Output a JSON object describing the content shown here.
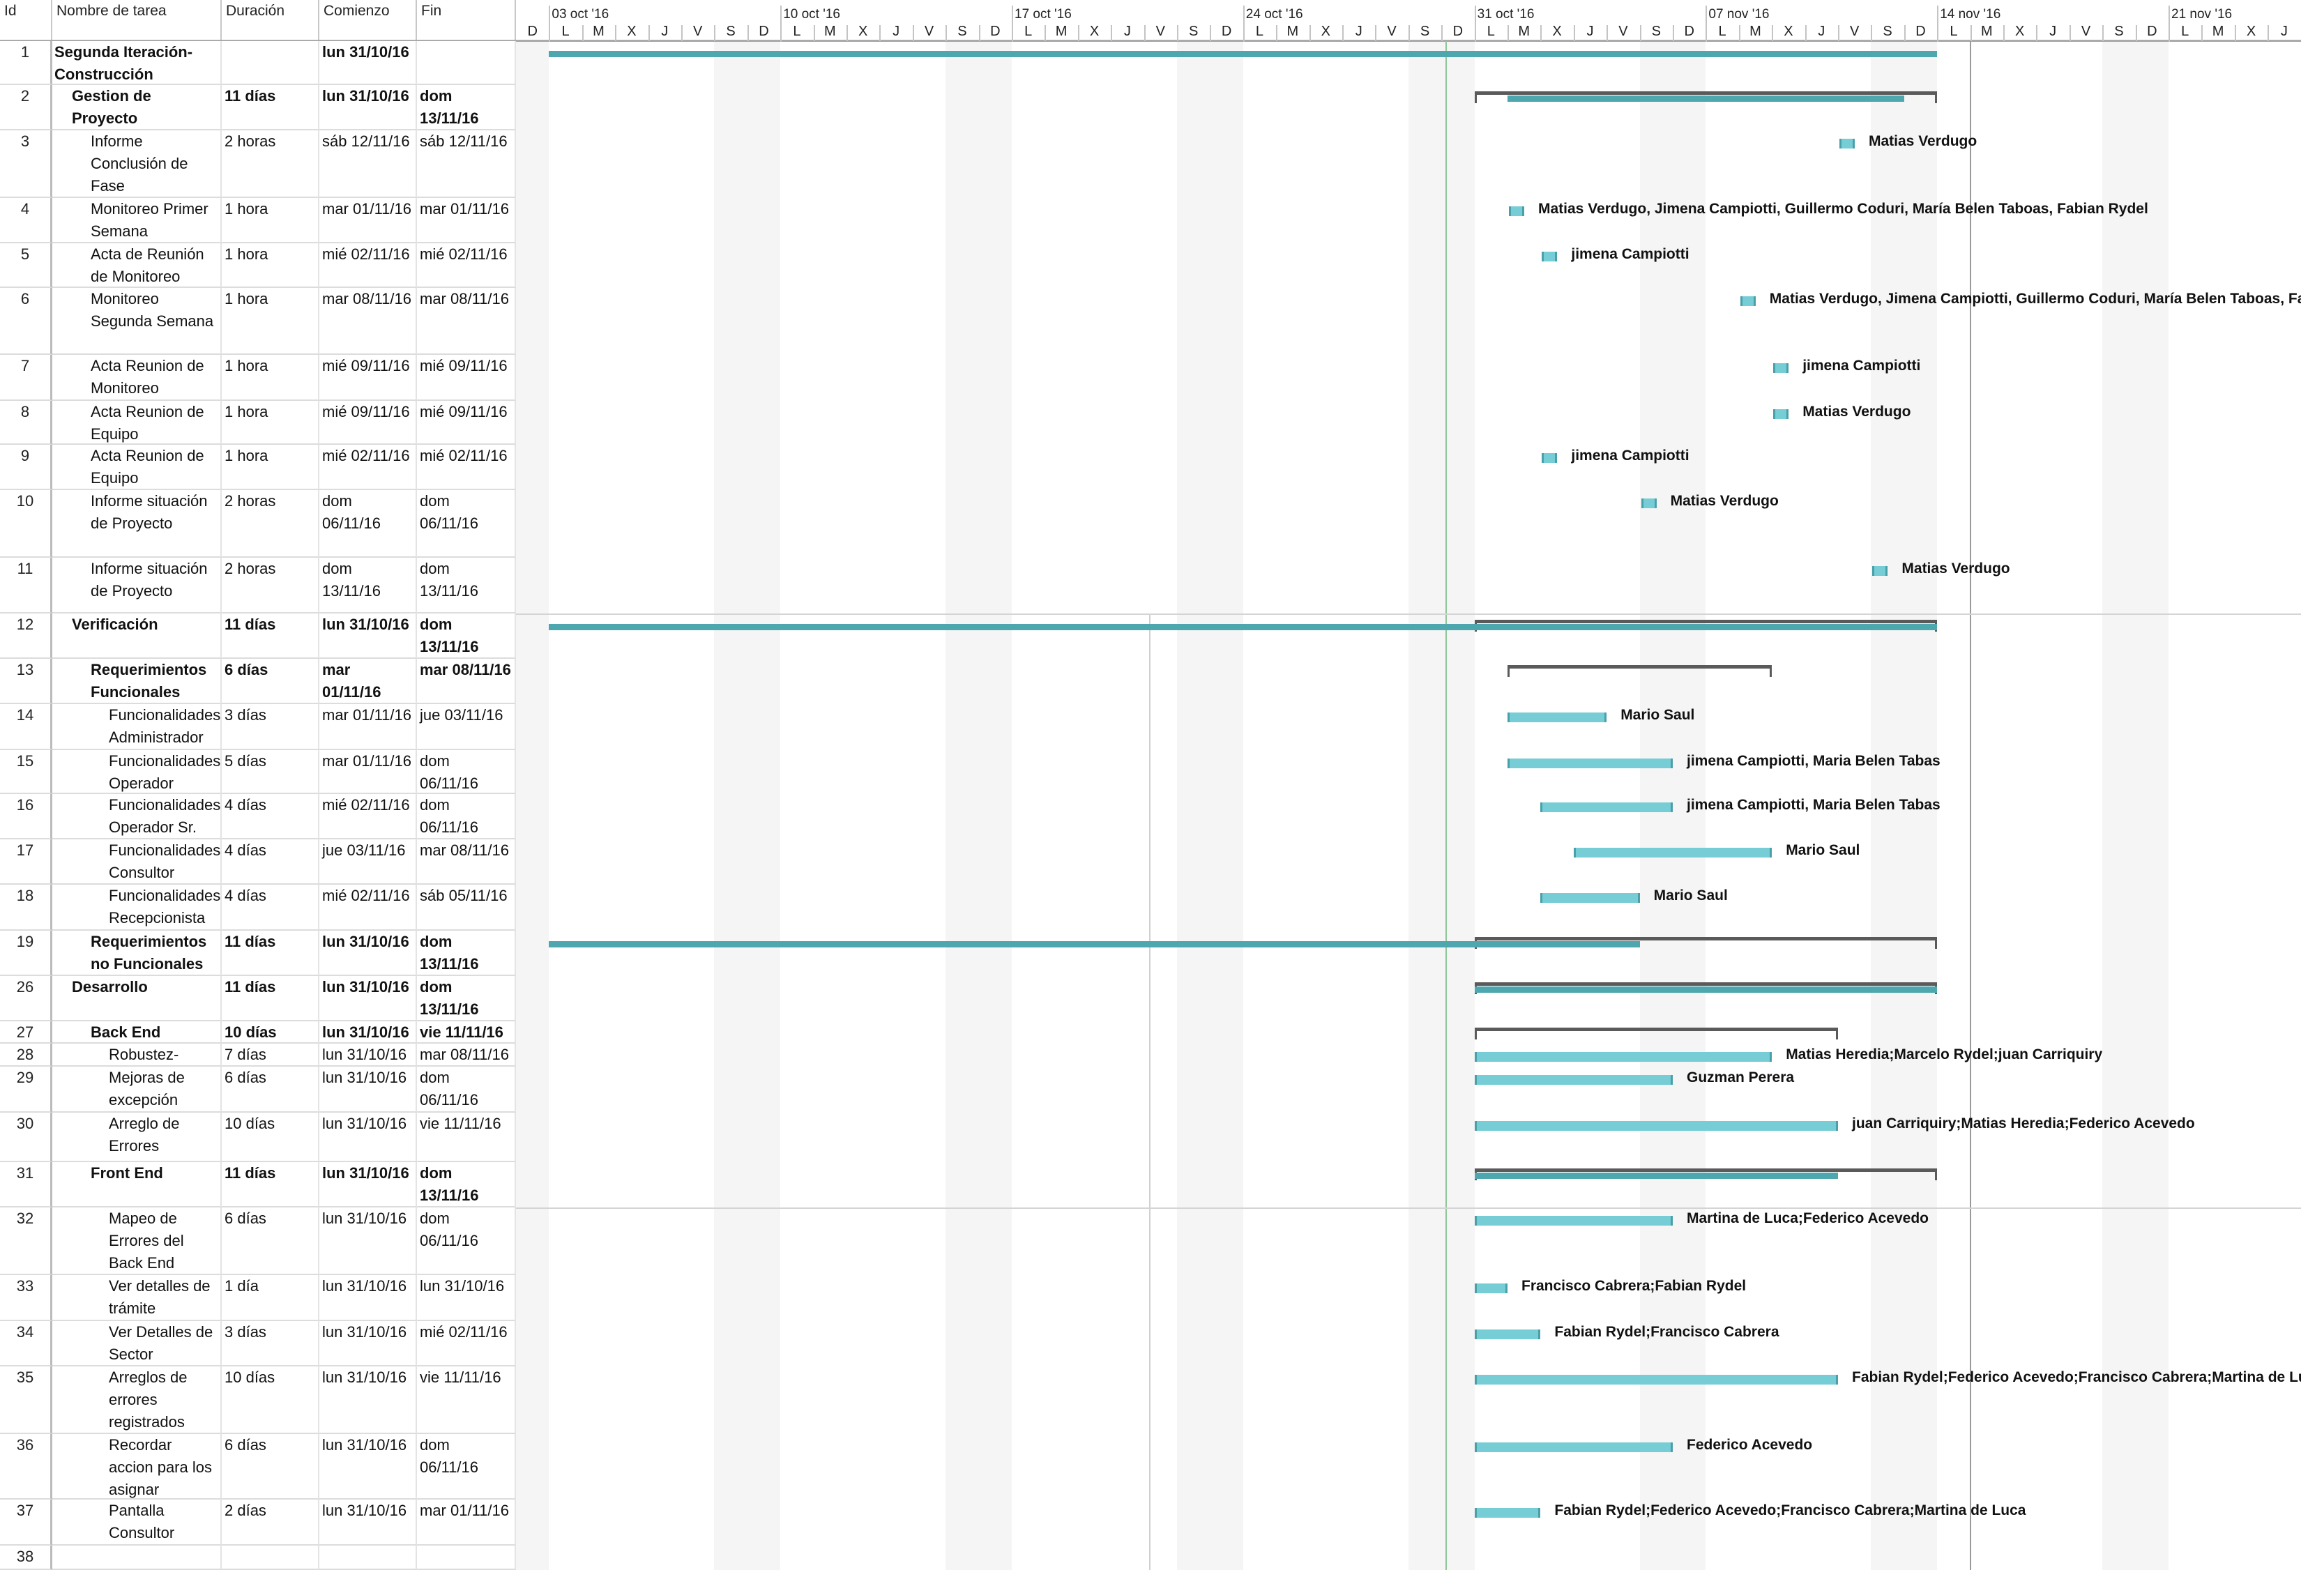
{
  "columns": {
    "id": "Id",
    "name": "Nombre de tarea",
    "duration": "Duración",
    "start": "Comienzo",
    "finish": "Fin"
  },
  "timescale": {
    "weeks": [
      "03 oct '16",
      "10 oct '16",
      "17 oct '16",
      "24 oct '16",
      "31 oct '16",
      "07 nov '16",
      "14 nov '16",
      "21 nov '16"
    ],
    "day_letters": [
      "D",
      "L",
      "M",
      "X",
      "J",
      "V",
      "S"
    ]
  },
  "colors": {
    "task_bar": "#76cdd5",
    "summary_bar": "#4ea6ae",
    "bracket": "#5a5a5a",
    "weekend": "#f5f5f5",
    "status_line": "#8fc79a"
  },
  "rows": [
    {
      "id": "1",
      "name": "Segunda Iteración-Construcción",
      "duration": "",
      "start": "lun 31/10/16",
      "finish": "",
      "level": 0,
      "bold": true,
      "bars": [
        {
          "type": "teal",
          "from": "03/10/16",
          "to": "13/11/16"
        }
      ]
    },
    {
      "id": "2",
      "name": "Gestion de Proyecto",
      "duration": "11 días",
      "start": "lun 31/10/16",
      "finish": "dom 13/11/16",
      "level": 1,
      "bold": true,
      "bars": [
        {
          "type": "bracket",
          "from": "31/10/16",
          "to": "13/11/16"
        },
        {
          "type": "teal",
          "from": "01/11/16",
          "to": "12/11/16"
        }
      ]
    },
    {
      "id": "3",
      "name": "Informe Conclusión de Fase",
      "duration": "2 horas",
      "start": "sáb 12/11/16",
      "finish": "sáb 12/11/16",
      "level": 2,
      "bars": [
        {
          "type": "hour",
          "from": "11/11/16"
        }
      ],
      "resources": "Matias Verdugo"
    },
    {
      "id": "4",
      "name": "Monitoreo Primer Semana",
      "duration": "1 hora",
      "start": "mar 01/11/16",
      "finish": "mar 01/11/16",
      "level": 2,
      "bars": [
        {
          "type": "hour",
          "from": "01/11/16"
        }
      ],
      "resources": "Matias Verdugo, Jimena Campiotti, Guillermo Coduri, María Belen Taboas, Fabian Rydel"
    },
    {
      "id": "5",
      "name": "Acta de Reunión de Monitoreo",
      "duration": "1 hora",
      "start": "mié 02/11/16",
      "finish": "mié 02/11/16",
      "level": 2,
      "bars": [
        {
          "type": "hour",
          "from": "02/11/16"
        }
      ],
      "resources": "jimena Campiotti"
    },
    {
      "id": "6",
      "name": "Monitoreo Segunda Semana",
      "duration": "1 hora",
      "start": "mar 08/11/16",
      "finish": "mar 08/11/16",
      "level": 2,
      "bars": [
        {
          "type": "hour",
          "from": "08/11/16"
        }
      ],
      "resources": "Matias Verdugo, Jimena Campiotti, Guillermo Coduri, María Belen Taboas, Fabian Rydel"
    },
    {
      "id": "7",
      "name": "Acta Reunion de Monitoreo",
      "duration": "1 hora",
      "start": "mié 09/11/16",
      "finish": "mié 09/11/16",
      "level": 2,
      "bars": [
        {
          "type": "hour",
          "from": "09/11/16"
        }
      ],
      "resources": "jimena Campiotti"
    },
    {
      "id": "8",
      "name": "Acta Reunion de Equipo",
      "duration": "1 hora",
      "start": "mié 09/11/16",
      "finish": "mié 09/11/16",
      "level": 2,
      "bars": [
        {
          "type": "hour",
          "from": "09/11/16"
        }
      ],
      "resources": "Matias Verdugo"
    },
    {
      "id": "9",
      "name": "Acta Reunion de Equipo",
      "duration": "1 hora",
      "start": "mié 02/11/16",
      "finish": "mié 02/11/16",
      "level": 2,
      "bars": [
        {
          "type": "hour",
          "from": "02/11/16"
        }
      ],
      "resources": "jimena Campiotti"
    },
    {
      "id": "10",
      "name": "Informe situación de Proyecto",
      "duration": "2 horas",
      "start": "dom 06/11/16",
      "finish": "dom 06/11/16",
      "level": 2,
      "bars": [
        {
          "type": "hour",
          "from": "05/11/16"
        }
      ],
      "resources": "Matias Verdugo"
    },
    {
      "id": "11",
      "name": "Informe situación de Proyecto",
      "duration": "2 horas",
      "start": "dom 13/11/16",
      "finish": "dom 13/11/16",
      "level": 2,
      "bars": [
        {
          "type": "hour",
          "from": "12/11/16"
        }
      ],
      "resources": "Matias Verdugo"
    },
    {
      "id": "12",
      "name": "Verificación",
      "duration": "11 días",
      "start": "lun 31/10/16",
      "finish": "dom 13/11/16",
      "level": 1,
      "bold": true,
      "bars": [
        {
          "type": "bracket",
          "from": "31/10/16",
          "to": "13/11/16"
        },
        {
          "type": "teal",
          "from": "03/10/16",
          "to": "13/11/16"
        }
      ]
    },
    {
      "id": "13",
      "name": "Requerimientos Funcionales",
      "duration": "6 días",
      "start": "mar 01/11/16",
      "finish": "mar 08/11/16",
      "level": 2,
      "bold": true,
      "bars": [
        {
          "type": "bracket",
          "from": "01/11/16",
          "to": "08/11/16"
        }
      ]
    },
    {
      "id": "14",
      "name": "Funcionalidades Administrador",
      "duration": "3 días",
      "start": "mar 01/11/16",
      "finish": "jue 03/11/16",
      "level": 3,
      "bars": [
        {
          "type": "task",
          "from": "01/11/16",
          "to": "03/11/16"
        }
      ],
      "resources": "Mario Saul"
    },
    {
      "id": "15",
      "name": "Funcionalidades Operador",
      "duration": "5 días",
      "start": "mar 01/11/16",
      "finish": "dom 06/11/16",
      "level": 3,
      "bars": [
        {
          "type": "task",
          "from": "01/11/16",
          "to": "05/11/16"
        }
      ],
      "resources": "jimena Campiotti, Maria Belen Tabas"
    },
    {
      "id": "16",
      "name": "Funcionalidades Operador Sr.",
      "duration": "4 días",
      "start": "mié 02/11/16",
      "finish": "dom 06/11/16",
      "level": 3,
      "bars": [
        {
          "type": "task",
          "from": "02/11/16",
          "to": "05/11/16"
        }
      ],
      "resources": "jimena Campiotti, Maria Belen Tabas"
    },
    {
      "id": "17",
      "name": "Funcionalidades Consultor",
      "duration": "4 días",
      "start": "jue 03/11/16",
      "finish": "mar 08/11/16",
      "level": 3,
      "bars": [
        {
          "type": "task",
          "from": "03/11/16",
          "to": "08/11/16"
        }
      ],
      "resources": "Mario Saul"
    },
    {
      "id": "18",
      "name": "Funcionalidades Recepcionista",
      "duration": "4 días",
      "start": "mié 02/11/16",
      "finish": "sáb 05/11/16",
      "level": 3,
      "bars": [
        {
          "type": "task",
          "from": "02/11/16",
          "to": "04/11/16"
        }
      ],
      "resources": "Mario Saul"
    },
    {
      "id": "19",
      "name": "Requerimientos no Funcionales",
      "duration": "11 días",
      "start": "lun 31/10/16",
      "finish": "dom 13/11/16",
      "level": 2,
      "bold": true,
      "bars": [
        {
          "type": "bracket",
          "from": "31/10/16",
          "to": "13/11/16"
        },
        {
          "type": "teal",
          "from": "03/10/16",
          "to": "04/11/16"
        }
      ]
    },
    {
      "id": "26",
      "name": "Desarrollo",
      "duration": "11 días",
      "start": "lun 31/10/16",
      "finish": "dom 13/11/16",
      "level": 1,
      "bold": true,
      "bars": [
        {
          "type": "bracket",
          "from": "31/10/16",
          "to": "13/11/16"
        },
        {
          "type": "teal",
          "from": "31/10/16",
          "to": "13/11/16"
        }
      ]
    },
    {
      "id": "27",
      "name": "Back End",
      "duration": "10 días",
      "start": "lun 31/10/16",
      "finish": "vie 11/11/16",
      "level": 2,
      "bold": true,
      "bars": [
        {
          "type": "bracket",
          "from": "31/10/16",
          "to": "10/11/16"
        }
      ]
    },
    {
      "id": "28",
      "name": "Robustez-Scalabilidad",
      "duration": "7 días",
      "start": "lun 31/10/16",
      "finish": "mar 08/11/16",
      "level": 3,
      "bars": [
        {
          "type": "task",
          "from": "31/10/16",
          "to": "08/11/16"
        }
      ],
      "resources": "Matias Heredia;Marcelo Rydel;juan Carriquiry"
    },
    {
      "id": "29",
      "name": "Mejoras de excepción",
      "duration": "6 días",
      "start": "lun 31/10/16",
      "finish": "dom 06/11/16",
      "level": 3,
      "bars": [
        {
          "type": "task",
          "from": "31/10/16",
          "to": "05/11/16"
        }
      ],
      "resources": "Guzman Perera"
    },
    {
      "id": "30",
      "name": "Arreglo de Errores",
      "duration": "10 días",
      "start": "lun 31/10/16",
      "finish": "vie 11/11/16",
      "level": 3,
      "bars": [
        {
          "type": "task",
          "from": "31/10/16",
          "to": "10/11/16"
        }
      ],
      "resources": "juan Carriquiry;Matias Heredia;Federico Acevedo"
    },
    {
      "id": "31",
      "name": "Front End",
      "duration": "11 días",
      "start": "lun 31/10/16",
      "finish": "dom 13/11/16",
      "level": 2,
      "bold": true,
      "bars": [
        {
          "type": "bracket",
          "from": "31/10/16",
          "to": "13/11/16"
        },
        {
          "type": "teal",
          "from": "31/10/16",
          "to": "10/11/16"
        }
      ]
    },
    {
      "id": "32",
      "name": "Mapeo de Errores del Back End",
      "duration": "6 días",
      "start": "lun 31/10/16",
      "finish": "dom 06/11/16",
      "level": 3,
      "bars": [
        {
          "type": "task",
          "from": "31/10/16",
          "to": "05/11/16"
        }
      ],
      "resources": "Martina de Luca;Federico Acevedo"
    },
    {
      "id": "33",
      "name": "Ver detalles de trámite",
      "duration": "1 día",
      "start": "lun 31/10/16",
      "finish": "lun 31/10/16",
      "level": 3,
      "bars": [
        {
          "type": "task",
          "from": "31/10/16",
          "to": "31/10/16"
        }
      ],
      "resources": "Francisco Cabrera;Fabian Rydel"
    },
    {
      "id": "34",
      "name": "Ver Detalles de Sector",
      "duration": "3 días",
      "start": "lun 31/10/16",
      "finish": "mié 02/11/16",
      "level": 3,
      "bars": [
        {
          "type": "task",
          "from": "31/10/16",
          "to": "01/11/16"
        }
      ],
      "resources": "Fabian Rydel;Francisco Cabrera"
    },
    {
      "id": "35",
      "name": "Arreglos de errores registrados",
      "duration": "10 días",
      "start": "lun 31/10/16",
      "finish": "vie 11/11/16",
      "level": 3,
      "bars": [
        {
          "type": "task",
          "from": "31/10/16",
          "to": "10/11/16"
        }
      ],
      "resources": "Fabian Rydel;Federico Acevedo;Francisco Cabrera;Martina de Luca"
    },
    {
      "id": "36",
      "name": "Recordar accion para los asignar",
      "duration": "6 días",
      "start": "lun 31/10/16",
      "finish": "dom 06/11/16",
      "level": 3,
      "bars": [
        {
          "type": "task",
          "from": "31/10/16",
          "to": "05/11/16"
        }
      ],
      "resources": "Federico Acevedo"
    },
    {
      "id": "37",
      "name": "Pantalla Consultor",
      "duration": "2 días",
      "start": "lun 31/10/16",
      "finish": "mar 01/11/16",
      "level": 3,
      "bars": [
        {
          "type": "task",
          "from": "31/10/16",
          "to": "01/11/16"
        }
      ],
      "resources": "Fabian Rydel;Federico Acevedo;Francisco Cabrera;Martina de Luca"
    },
    {
      "id": "38",
      "name": "",
      "duration": "",
      "start": "",
      "finish": "",
      "level": 0,
      "bars": []
    }
  ]
}
